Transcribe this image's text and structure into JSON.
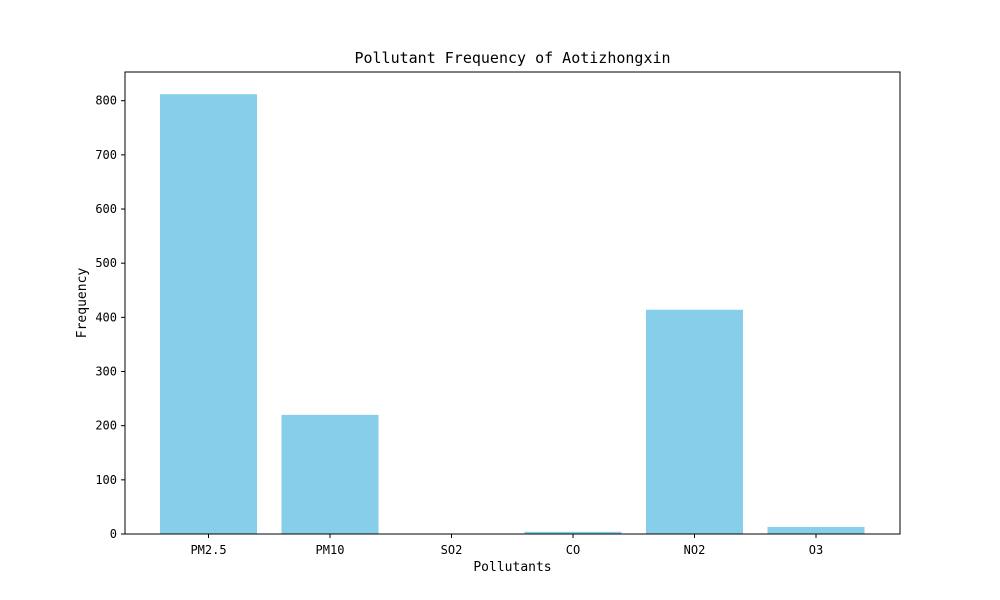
{
  "chart_data": {
    "type": "bar",
    "title": "Pollutant Frequency of Aotizhongxin",
    "xlabel": "Pollutants",
    "ylabel": "Frequency",
    "categories": [
      "PM2.5",
      "PM10",
      "SO2",
      "CO",
      "NO2",
      "O3"
    ],
    "values": [
      812,
      220,
      0,
      4,
      414,
      13
    ],
    "ylim": [
      0,
      853
    ],
    "yticks": [
      0,
      100,
      200,
      300,
      400,
      500,
      600,
      700,
      800
    ],
    "bar_color": "#87ceeb",
    "grid": false,
    "legend": "none"
  }
}
